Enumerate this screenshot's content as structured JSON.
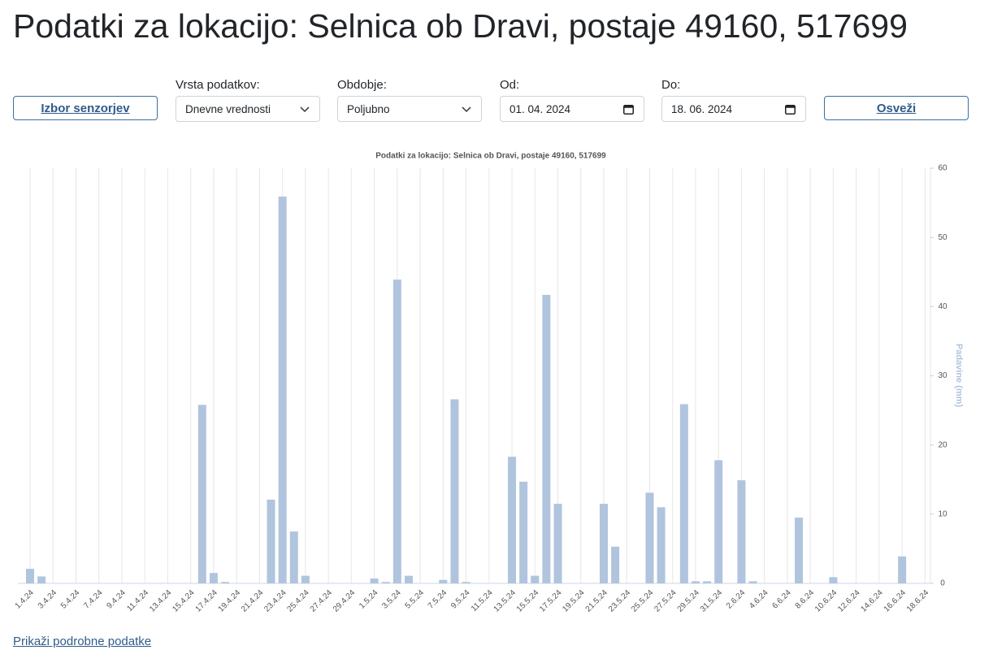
{
  "header": {
    "title": "Podatki za lokacijo: Selnica ob Dravi, postaje 49160, 517699"
  },
  "controls": {
    "sensor_button": "Izbor senzorjev",
    "data_type": {
      "label": "Vrsta podatkov:",
      "value": "Dnevne vrednosti"
    },
    "period": {
      "label": "Obdobje:",
      "value": "Poljubno"
    },
    "from": {
      "label": "Od:",
      "value": "01. 04. 2024"
    },
    "to": {
      "label": "Do:",
      "value": "18. 06. 2024"
    },
    "refresh_button": "Osveži"
  },
  "chart_data": {
    "type": "bar",
    "title": "Podatki za lokacijo: Selnica ob Dravi, postaje 49160, 517699",
    "y_axis_label": "Padavine (mm)",
    "categories": [
      "1.4.24",
      null,
      "3.4.24",
      null,
      "5.4.24",
      null,
      "7.4.24",
      null,
      "9.4.24",
      null,
      "11.4.24",
      null,
      "13.4.24",
      null,
      "15.4.24",
      null,
      "17.4.24",
      null,
      "19.4.24",
      null,
      "21.4.24",
      null,
      "23.4.24",
      null,
      "25.4.24",
      null,
      "27.4.24",
      null,
      "29.4.24",
      null,
      "1.5.24",
      null,
      "3.5.24",
      null,
      "5.5.24",
      null,
      "7.5.24",
      null,
      "9.5.24",
      null,
      "11.5.24",
      null,
      "13.5.24",
      null,
      "15.5.24",
      null,
      "17.5.24",
      null,
      "19.5.24",
      null,
      "21.5.24",
      null,
      "23.5.24",
      null,
      "25.5.24",
      null,
      "27.5.24",
      null,
      "29.5.24",
      null,
      "31.5.24",
      null,
      "2.6.24",
      null,
      "4.6.24",
      null,
      "6.6.24",
      null,
      "8.6.24",
      null,
      "10.6.24",
      null,
      "12.6.24",
      null,
      "14.6.24",
      null,
      "16.6.24",
      null,
      "18.6.24"
    ],
    "values": [
      2.1,
      1.0,
      0,
      0,
      0,
      0,
      0,
      0,
      0,
      0,
      0,
      0,
      0,
      0,
      0,
      25.8,
      1.5,
      0.2,
      0,
      0,
      0,
      12.1,
      55.9,
      7.5,
      1.1,
      0,
      0,
      0,
      0,
      0,
      0.7,
      0.2,
      43.9,
      1.1,
      0,
      0,
      0.5,
      26.6,
      0.2,
      0,
      0,
      0,
      18.3,
      14.7,
      1.1,
      41.7,
      11.5,
      0,
      0,
      0,
      11.5,
      5.3,
      0,
      0,
      13.1,
      11.0,
      0,
      25.9,
      0.3,
      0.3,
      17.8,
      0,
      14.9,
      0.3,
      0,
      0,
      0,
      9.5,
      0,
      0,
      0.9,
      0,
      0,
      0,
      0,
      0,
      3.9,
      0,
      0
    ],
    "color": "#b0c4de",
    "ylim": [
      0,
      60
    ],
    "yticks": [
      0,
      10,
      20,
      30,
      40,
      50,
      60
    ],
    "y_axis_side": "right",
    "grid": true
  },
  "footer": {
    "link": "Prikaži podrobne podatke"
  }
}
